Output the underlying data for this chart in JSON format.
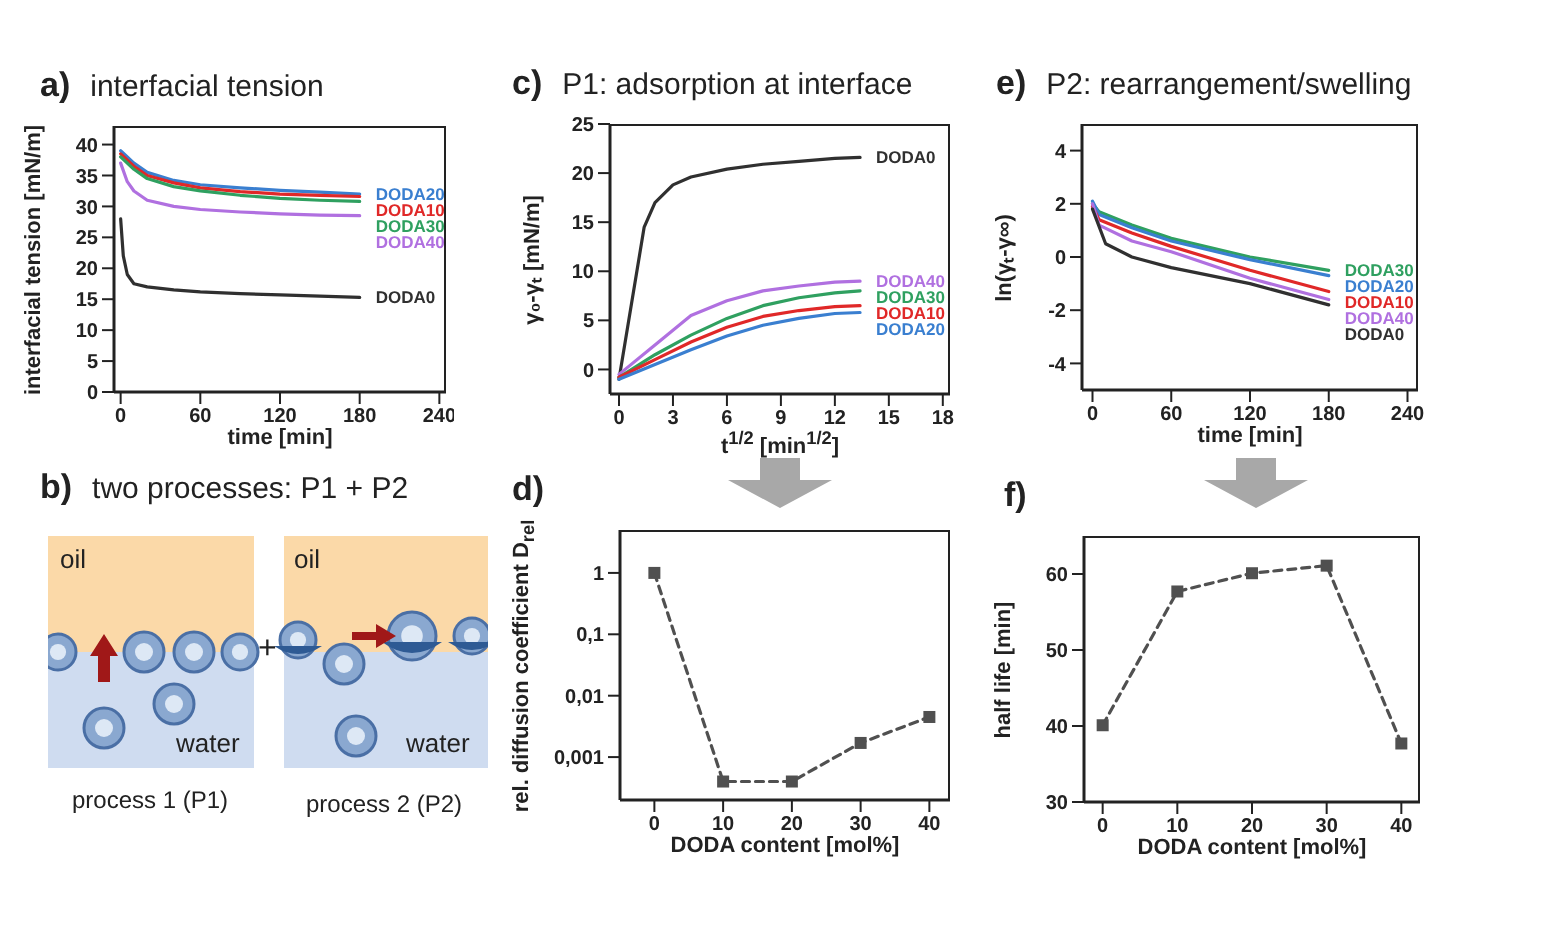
{
  "chart_data": [
    {
      "type": "line",
      "title": "a) interfacial tension",
      "xlabel": "time [min]",
      "ylabel": "interfacial tension [mN/m]",
      "xlim": [
        -5,
        245
      ],
      "xticks": [
        0,
        60,
        120,
        180,
        240
      ],
      "ylim": [
        0,
        43
      ],
      "yticks": [
        0,
        5,
        10,
        15,
        20,
        25,
        30,
        35,
        40
      ],
      "series": [
        {
          "name": "DODA20",
          "color": "#3a7fd0",
          "x": [
            0,
            10,
            20,
            40,
            60,
            90,
            120,
            150,
            180
          ],
          "values": [
            39,
            37,
            35.5,
            34.2,
            33.5,
            33,
            32.6,
            32.3,
            32
          ]
        },
        {
          "name": "DODA10",
          "color": "#e02828",
          "x": [
            0,
            10,
            20,
            40,
            60,
            90,
            120,
            150,
            180
          ],
          "values": [
            38.5,
            36.5,
            35,
            33.8,
            33,
            32.4,
            32,
            31.8,
            31.6
          ]
        },
        {
          "name": "DODA30",
          "color": "#2fa060",
          "x": [
            0,
            10,
            20,
            40,
            60,
            90,
            120,
            150,
            180
          ],
          "values": [
            38,
            36,
            34.5,
            33.2,
            32.5,
            31.8,
            31.3,
            31,
            30.8
          ]
        },
        {
          "name": "DODA40",
          "color": "#b070e0",
          "x": [
            0,
            5,
            10,
            20,
            40,
            60,
            90,
            120,
            150,
            180
          ],
          "values": [
            37,
            34,
            32.5,
            31,
            30,
            29.5,
            29.1,
            28.8,
            28.6,
            28.5
          ]
        },
        {
          "name": "DODA0",
          "color": "#303030",
          "x": [
            0,
            2,
            5,
            10,
            20,
            40,
            60,
            90,
            120,
            150,
            180
          ],
          "values": [
            28,
            22,
            19,
            17.5,
            17,
            16.5,
            16.2,
            15.9,
            15.7,
            15.5,
            15.3
          ]
        }
      ]
    },
    {
      "type": "line",
      "title": "c) P1: adsorption at interface",
      "xlabel": "t$^{1/2}$ [min$^{1/2}$]",
      "ylabel": "γ₀-γₜ [mN/m]",
      "xlim": [
        -0.5,
        18.4
      ],
      "xticks": [
        0,
        3,
        6,
        9,
        12,
        15,
        18
      ],
      "ylim": [
        -2.5,
        25
      ],
      "yticks": [
        0,
        5,
        10,
        15,
        20,
        25
      ],
      "series": [
        {
          "name": "DODA0",
          "color": "#303030",
          "x": [
            0,
            1.4,
            2,
            3,
            4,
            6,
            8,
            10,
            12,
            13.4
          ],
          "values": [
            -1,
            14.5,
            17,
            18.8,
            19.6,
            20.4,
            20.9,
            21.2,
            21.5,
            21.6
          ]
        },
        {
          "name": "DODA40",
          "color": "#b070e0",
          "x": [
            0,
            2,
            4,
            6,
            8,
            10,
            12,
            13.4
          ],
          "values": [
            -0.5,
            2.5,
            5.5,
            7,
            8,
            8.5,
            8.9,
            9
          ]
        },
        {
          "name": "DODA30",
          "color": "#2fa060",
          "x": [
            0,
            2,
            4,
            6,
            8,
            10,
            12,
            13.4
          ],
          "values": [
            -0.8,
            1.5,
            3.5,
            5.2,
            6.5,
            7.3,
            7.8,
            8
          ]
        },
        {
          "name": "DODA10",
          "color": "#e02828",
          "x": [
            0,
            2,
            4,
            6,
            8,
            10,
            12,
            13.4
          ],
          "values": [
            -0.8,
            1,
            2.8,
            4.3,
            5.4,
            6,
            6.4,
            6.5
          ]
        },
        {
          "name": "DODA20",
          "color": "#3a7fd0",
          "x": [
            0,
            2,
            4,
            6,
            8,
            10,
            12,
            13.4
          ],
          "values": [
            -1,
            0.5,
            2,
            3.4,
            4.5,
            5.2,
            5.7,
            5.8
          ]
        }
      ]
    },
    {
      "type": "line",
      "title": "e) P2: rearrangement/swelling",
      "xlabel": "time [min]",
      "ylabel": "ln(γₜ-γ∞)",
      "xlim": [
        -8,
        248
      ],
      "xticks": [
        0,
        60,
        120,
        180,
        240
      ],
      "ylim": [
        -5,
        5
      ],
      "yticks": [
        -4,
        -2,
        0,
        2,
        4
      ],
      "series": [
        {
          "name": "DODA30",
          "color": "#2fa060",
          "x": [
            0,
            5,
            30,
            60,
            120,
            180
          ],
          "values": [
            2,
            1.7,
            1.2,
            0.7,
            0,
            -0.5
          ]
        },
        {
          "name": "DODA20",
          "color": "#3a7fd0",
          "x": [
            0,
            5,
            30,
            60,
            120,
            180
          ],
          "values": [
            2.1,
            1.6,
            1.1,
            0.6,
            -0.1,
            -0.7
          ]
        },
        {
          "name": "DODA10",
          "color": "#e02828",
          "x": [
            0,
            5,
            30,
            60,
            120,
            180
          ],
          "values": [
            1.9,
            1.4,
            0.9,
            0.4,
            -0.5,
            -1.3
          ]
        },
        {
          "name": "DODA40",
          "color": "#b070e0",
          "x": [
            0,
            5,
            30,
            60,
            120,
            180
          ],
          "values": [
            2,
            1.2,
            0.6,
            0.2,
            -0.8,
            -1.6
          ]
        },
        {
          "name": "DODA0",
          "color": "#303030",
          "x": [
            0,
            10,
            30,
            60,
            120,
            180
          ],
          "values": [
            1.8,
            0.5,
            0,
            -0.4,
            -1,
            -1.8
          ]
        }
      ]
    },
    {
      "type": "other",
      "title": "b) two processes: P1 + P2",
      "annotations": [
        "oil",
        "water",
        "oil",
        "water",
        "+",
        "process 1 (P1)",
        "process 2 (P2)"
      ]
    },
    {
      "type": "line",
      "title": "d)",
      "xlabel": "DODA content [mol%]",
      "ylabel": "rel. diffusion coefficient D$_{rel}$",
      "log": "y",
      "marker": "square",
      "line_style": "dashed",
      "xlim": [
        -5,
        43
      ],
      "xticks": [
        0,
        10,
        20,
        30,
        40
      ],
      "ylim": [
        0.0002,
        5
      ],
      "yticks": [
        1,
        {
          "value": 0.1,
          "label": "0,1"
        },
        {
          "value": 0.01,
          "label": "0,01"
        },
        {
          "value": 0.001,
          "label": "0,001"
        }
      ],
      "series": [
        {
          "color": "#505050",
          "x": [
            0,
            10,
            20,
            30,
            40
          ],
          "values": [
            1,
            0.0004,
            0.0004,
            0.0017,
            0.0045
          ]
        }
      ]
    },
    {
      "type": "line",
      "title": "f)",
      "xlabel": "DODA content [mol%]",
      "ylabel": "half life [min]",
      "marker": "square",
      "line_style": "dashed",
      "xlim": [
        -2.5,
        42.5
      ],
      "xticks": [
        0,
        10,
        20,
        30,
        40
      ],
      "ylim": [
        30,
        65
      ],
      "yticks": [
        30,
        40,
        50,
        60
      ],
      "series": [
        {
          "color": "#505050",
          "x": [
            0,
            10,
            20,
            30,
            40
          ],
          "values": [
            40.1,
            57.7,
            60.1,
            61.1,
            37.7
          ]
        }
      ]
    }
  ]
}
